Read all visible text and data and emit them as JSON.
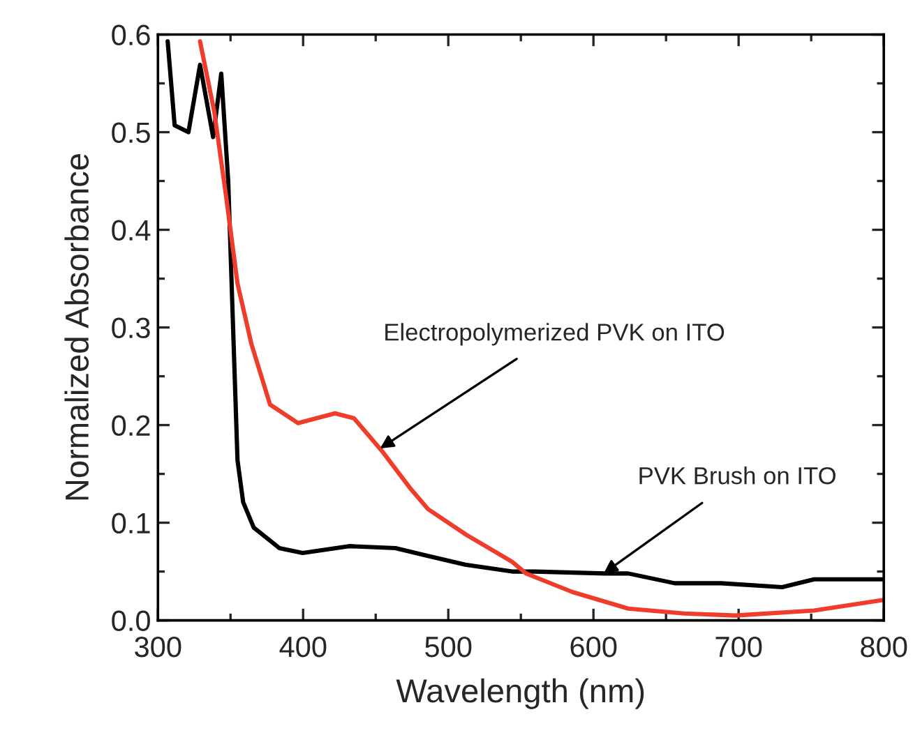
{
  "chart_data": {
    "type": "line",
    "xlabel": "Wavelength (nm)",
    "ylabel": "Normalized Absorbance",
    "xlim": [
      300,
      800
    ],
    "xticks": [
      300,
      400,
      500,
      600,
      700,
      800
    ],
    "ylim": [
      0.0,
      0.6
    ],
    "yticks": [
      {
        "value": 0.0,
        "label": "0.0"
      },
      {
        "value": 0.1,
        "label": "0.1"
      },
      {
        "value": 0.2,
        "label": "0.2"
      },
      {
        "value": 0.3,
        "label": "0.3"
      },
      {
        "value": 0.4,
        "label": "0.4"
      },
      {
        "value": 0.5,
        "label": "0.5"
      },
      {
        "value": 0.6,
        "label": "0.6"
      }
    ],
    "grid": false,
    "marker": "none",
    "line_style": "solid",
    "series": [
      {
        "color": "#000000",
        "x": [
          306.7,
          311.5,
          321,
          329,
          338,
          343.6,
          348.4,
          351.6,
          354.8,
          358.7,
          366,
          383.6,
          399.7,
          431.7,
          463.6,
          483,
          511.7,
          544,
          560,
          608,
          624,
          656,
          688,
          730,
          752,
          800
        ],
        "values": [
          0.593,
          0.507,
          0.5,
          0.569,
          0.495,
          0.56,
          0.45,
          0.307,
          0.164,
          0.121,
          0.095,
          0.074,
          0.069,
          0.076,
          0.074,
          0.067,
          0.057,
          0.05,
          0.05,
          0.048,
          0.048,
          0.038,
          0.038,
          0.034,
          0.042,
          0.042
        ]
      },
      {
        "color": "#f03c2a",
        "x": [
          329,
          338.8,
          346.8,
          354.8,
          364.4,
          377.2,
          396.5,
          422,
          435,
          454,
          473.4,
          486,
          512,
          544,
          553.6,
          585.6,
          624,
          662.5,
          697.8,
          752,
          800
        ],
        "values": [
          0.593,
          0.521,
          0.436,
          0.345,
          0.283,
          0.221,
          0.202,
          0.212,
          0.207,
          0.174,
          0.136,
          0.114,
          0.088,
          0.06,
          0.048,
          0.029,
          0.012,
          0.007,
          0.005,
          0.01,
          0.021
        ]
      }
    ],
    "annotations": [
      {
        "text": "Electropolymerized PVK on ITO",
        "x": 453,
        "y": 0.176
      },
      {
        "text": "PVK Brush on ITO",
        "x": 607,
        "y": 0.048
      }
    ]
  }
}
